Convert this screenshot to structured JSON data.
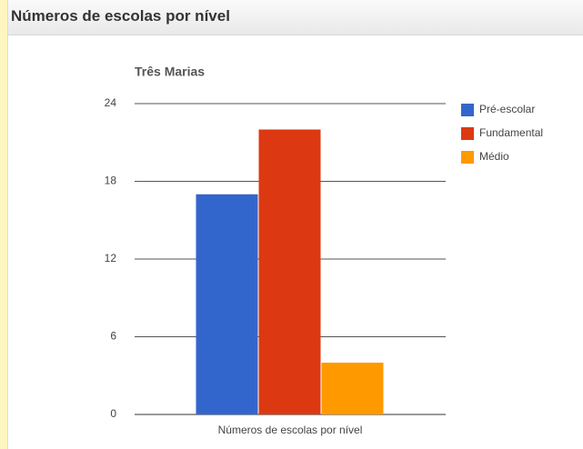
{
  "header": {
    "title": "Números de escolas por nível"
  },
  "chart_data": {
    "type": "bar",
    "title": "Três Marias",
    "categories": [
      "Números de escolas por nível"
    ],
    "series": [
      {
        "name": "Pré-escolar",
        "color": "#3366cc",
        "values": [
          17
        ]
      },
      {
        "name": "Fundamental",
        "color": "#dc3912",
        "values": [
          22
        ]
      },
      {
        "name": "Médio",
        "color": "#ff9900",
        "values": [
          4
        ]
      }
    ],
    "ylim": [
      0,
      24
    ],
    "yticks": [
      0,
      6,
      12,
      18,
      24
    ],
    "grid": true,
    "legend": "right"
  }
}
